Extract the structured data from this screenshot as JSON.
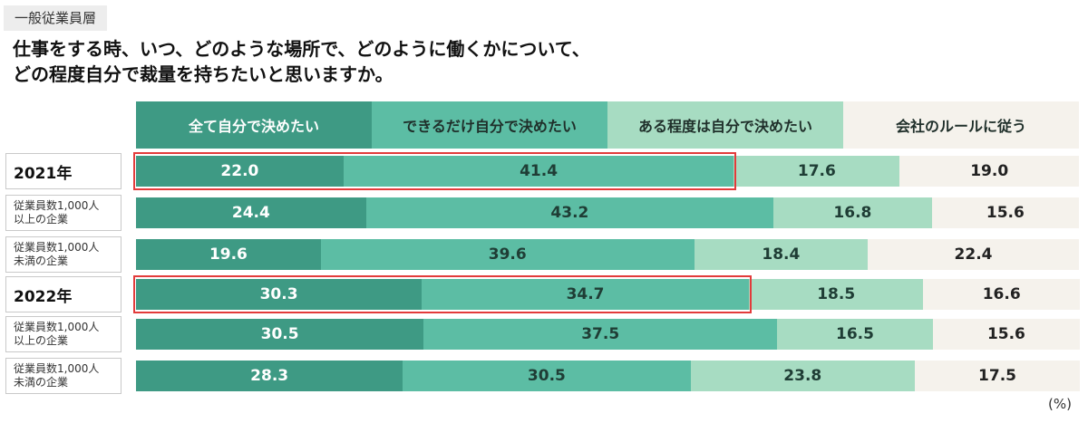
{
  "tag": "一般従業員層",
  "title_lines": [
    "仕事をする時、いつ、どのような場所で、どのように働くかについて、",
    "どの程度自分で裁量を持ちたいと思いますか。"
  ],
  "unit": "(%)",
  "colors": {
    "seg0": "#3e9a84",
    "seg1": "#5cbda4",
    "seg2": "#a7dcc2",
    "seg3": "#f5f2ec",
    "highlight": "#e23b3b"
  },
  "chart_data": {
    "type": "bar",
    "orientation": "horizontal",
    "stacked": true,
    "xlim": [
      0,
      100
    ],
    "categories": [
      "2021年",
      "従業員数1,000人以上の企業",
      "従業員数1,000人未満の企業",
      "2022年",
      "従業員数1,000人以上の企業",
      "従業員数1,000人未満の企業"
    ],
    "category_lines": [
      [
        "2021年"
      ],
      [
        "従業員数1,000人",
        "以上の企業"
      ],
      [
        "従業員数1,000人",
        "未満の企業"
      ],
      [
        "2022年"
      ],
      [
        "従業員数1,000人",
        "以上の企業"
      ],
      [
        "従業員数1,000人",
        "未満の企業"
      ]
    ],
    "series": [
      {
        "name": "全て自分で決めたい",
        "values": [
          22.0,
          24.4,
          19.6,
          30.3,
          30.5,
          28.3
        ]
      },
      {
        "name": "できるだけ自分で決めたい",
        "values": [
          41.4,
          43.2,
          39.6,
          34.7,
          37.5,
          30.5
        ]
      },
      {
        "name": "ある程度は自分で決めたい",
        "values": [
          17.6,
          16.8,
          18.4,
          18.5,
          16.5,
          23.8
        ]
      },
      {
        "name": "会社のルールに従う",
        "values": [
          19.0,
          15.6,
          22.4,
          16.6,
          15.6,
          17.5
        ]
      }
    ],
    "highlighted_rows": [
      "2021年",
      "2022年"
    ]
  }
}
